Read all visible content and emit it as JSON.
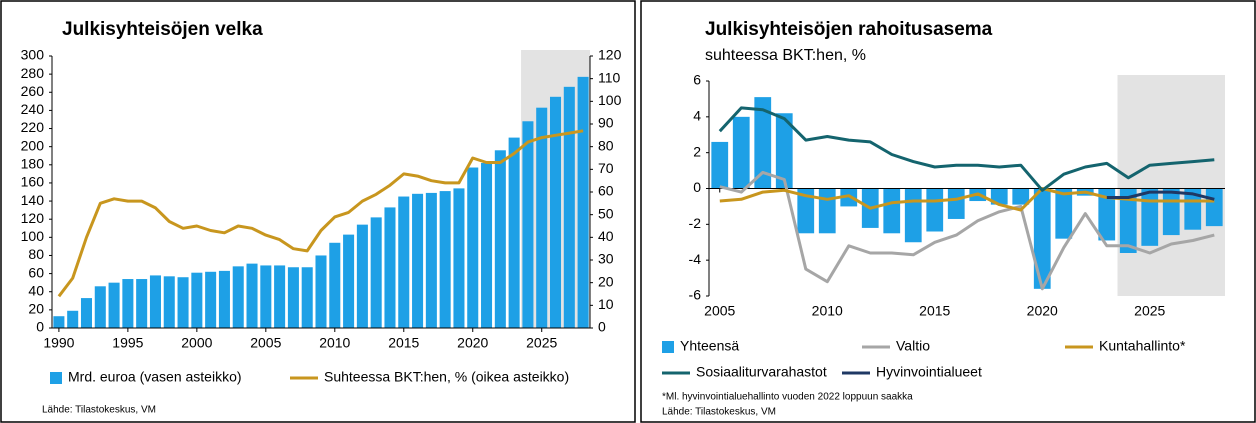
{
  "chart_data": [
    {
      "type": "combo",
      "title": "Julkisyhteisöjen velka",
      "source": "Lähde: Tilastokeskus, VM",
      "x": [
        1990,
        1991,
        1992,
        1993,
        1994,
        1995,
        1996,
        1997,
        1998,
        1999,
        2000,
        2001,
        2002,
        2003,
        2004,
        2005,
        2006,
        2007,
        2008,
        2009,
        2010,
        2011,
        2012,
        2013,
        2014,
        2015,
        2016,
        2017,
        2018,
        2019,
        2020,
        2021,
        2022,
        2023,
        2024,
        2025,
        2026,
        2027,
        2028
      ],
      "series": [
        {
          "name": "Mrd. euroa (vasen asteikko)",
          "mark": "bar",
          "color": "#1ea0e6",
          "values": [
            13,
            19,
            33,
            46,
            50,
            54,
            54,
            58,
            57,
            56,
            61,
            62,
            63,
            68,
            71,
            69,
            69,
            67,
            67,
            80,
            94,
            103,
            114,
            122,
            133,
            145,
            148,
            149,
            151,
            154,
            177,
            182,
            196,
            210,
            228,
            243,
            255,
            266,
            277
          ]
        },
        {
          "name": "Suhteessa BKT:hen, % (oikea asteikko)",
          "mark": "line",
          "axis": "y2",
          "color": "#c8961e",
          "values": [
            14,
            22,
            40,
            55,
            57,
            56,
            56,
            53,
            47,
            44,
            45,
            43,
            42,
            45,
            44,
            41,
            39,
            35,
            34,
            43,
            49,
            51,
            56,
            59,
            63,
            68,
            67,
            65,
            64,
            64,
            75,
            73,
            73,
            77,
            82,
            84,
            85,
            86,
            87
          ]
        }
      ],
      "xlim": [
        1989.5,
        2028.5
      ],
      "xticks": [
        1990,
        1995,
        2000,
        2005,
        2010,
        2015,
        2020,
        2025
      ],
      "ylim": [
        0,
        300
      ],
      "yticks": [
        0,
        20,
        40,
        60,
        80,
        100,
        120,
        140,
        160,
        180,
        200,
        220,
        240,
        260,
        280,
        300
      ],
      "y2lim": [
        0,
        120
      ],
      "y2ticks": [
        0,
        10,
        20,
        30,
        40,
        50,
        60,
        70,
        80,
        90,
        100,
        110,
        120
      ],
      "shaded_span": [
        2023.5,
        2028.5
      ],
      "shade_color": "#e3e3e3"
    },
    {
      "type": "combo",
      "title": "Julkisyhteisöjen rahoitusasema",
      "subtitle": "suhteessa BKT:hen, %",
      "footnote": "*Ml. hyvinvointialuehallinto vuoden 2022 loppuun saakka",
      "source": "Lähde: Tilastokeskus, VM",
      "x": [
        2005,
        2006,
        2007,
        2008,
        2009,
        2010,
        2011,
        2012,
        2013,
        2014,
        2015,
        2016,
        2017,
        2018,
        2019,
        2020,
        2021,
        2022,
        2023,
        2024,
        2025,
        2026,
        2027,
        2028
      ],
      "series": [
        {
          "name": "Yhteensä",
          "mark": "bar",
          "color": "#1ea0e6",
          "values": [
            2.6,
            4.0,
            5.1,
            4.2,
            -2.5,
            -2.5,
            -1.0,
            -2.2,
            -2.5,
            -3.0,
            -2.4,
            -1.7,
            -0.7,
            -0.9,
            -0.9,
            -5.6,
            -2.8,
            -0.4,
            -2.9,
            -3.6,
            -3.2,
            -2.6,
            -2.3,
            -2.1
          ]
        },
        {
          "name": "Valtio",
          "mark": "line",
          "color": "#a6a6a6",
          "values": [
            0.1,
            -0.2,
            0.9,
            0.5,
            -4.5,
            -5.2,
            -3.2,
            -3.6,
            -3.6,
            -3.7,
            -3.0,
            -2.6,
            -1.8,
            -1.3,
            -1.0,
            -5.6,
            -3.3,
            -1.4,
            -3.2,
            -3.2,
            -3.6,
            -3.1,
            -2.9,
            -2.6
          ]
        },
        {
          "name": "Kuntahallinto*",
          "mark": "line",
          "color": "#c8961e",
          "values": [
            -0.7,
            -0.6,
            -0.2,
            -0.1,
            -0.4,
            -0.6,
            -0.4,
            -1.1,
            -0.8,
            -0.7,
            -0.7,
            -0.6,
            -0.3,
            -0.9,
            -1.2,
            0.0,
            -0.3,
            -0.2,
            -0.5,
            -0.6,
            -0.7,
            -0.7,
            -0.7,
            -0.7
          ]
        },
        {
          "name": "Sosiaaliturvarahastot",
          "mark": "line",
          "color": "#14646e",
          "values": [
            3.2,
            4.5,
            4.4,
            3.9,
            2.7,
            2.9,
            2.7,
            2.6,
            1.9,
            1.5,
            1.2,
            1.3,
            1.3,
            1.2,
            1.3,
            -0.1,
            0.8,
            1.2,
            1.4,
            0.6,
            1.3,
            1.4,
            1.5,
            1.6
          ]
        },
        {
          "name": "Hyvinvointialueet",
          "mark": "line",
          "color": "#1f3864",
          "values": [
            null,
            null,
            null,
            null,
            null,
            null,
            null,
            null,
            null,
            null,
            null,
            null,
            null,
            null,
            null,
            null,
            null,
            null,
            -0.5,
            -0.5,
            -0.2,
            -0.2,
            -0.3,
            -0.6
          ]
        }
      ],
      "xlim": [
        2004.5,
        2028.5
      ],
      "xticks": [
        2005,
        2010,
        2015,
        2020,
        2025
      ],
      "ylim": [
        -6,
        6
      ],
      "yticks": [
        -6,
        -4,
        -2,
        0,
        2,
        4,
        6
      ],
      "shaded_span": [
        2023.5,
        2028.5
      ],
      "shade_color": "#e3e3e3"
    }
  ]
}
